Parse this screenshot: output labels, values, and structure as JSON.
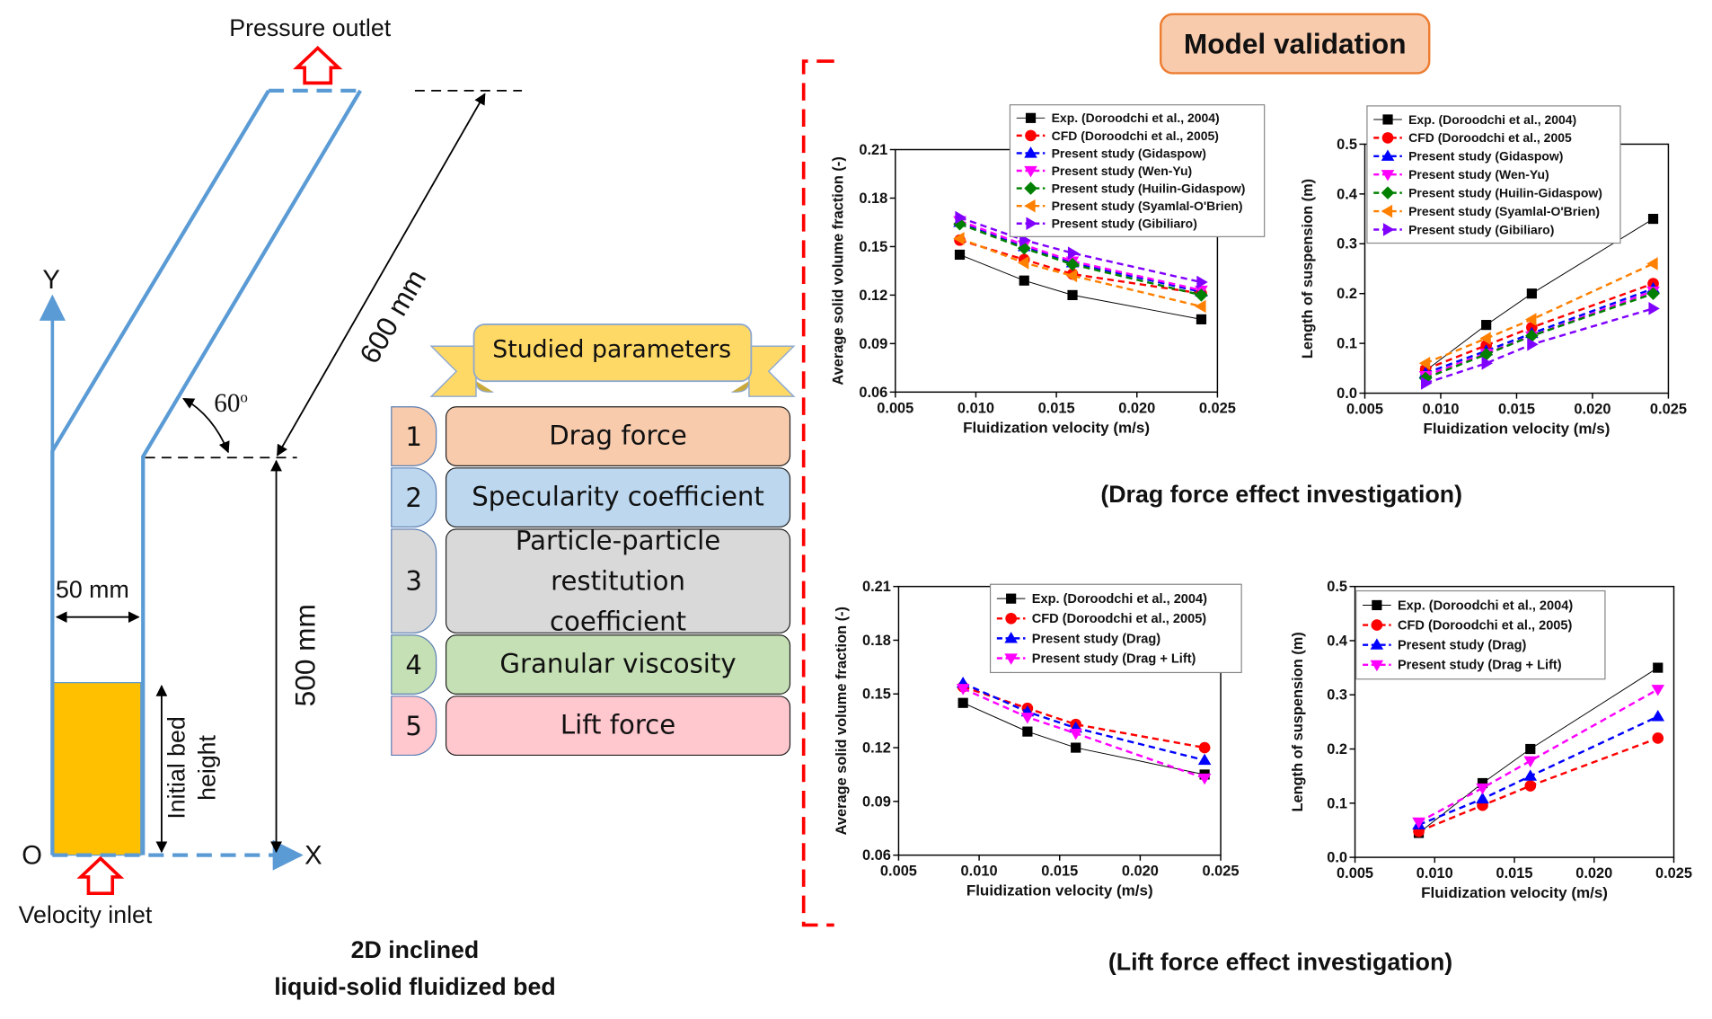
{
  "geometry_labels": {
    "pressure_outlet": "Pressure outlet",
    "velocity_inlet": "Velocity inlet",
    "y_axis": "Y",
    "x_axis": "X",
    "origin": "O",
    "width": "50 mm",
    "initial_bed_height_line1": "Initial bed",
    "initial_bed_height_line2": "height",
    "incline_length": "600 mm",
    "vertical_length": "500 mm",
    "angle": "60",
    "angle_sup": "o",
    "caption_line1": "2D inclined",
    "caption_line2": "liquid-solid fluidized bed"
  },
  "parameters": {
    "banner": "Studied parameters",
    "items": [
      {
        "num": "1",
        "label": "Drag force",
        "color": "#f8cbad"
      },
      {
        "num": "2",
        "label": "Specularity coefficient",
        "color": "#bdd7ee"
      },
      {
        "num": "3",
        "label": "Particle-particle restitution coefficient",
        "color": "#d9d9d9"
      },
      {
        "num": "4",
        "label": "Granular viscosity",
        "color": "#c5e0b4"
      },
      {
        "num": "5",
        "label": "Lift force",
        "color": "#ffc7ce"
      }
    ]
  },
  "validation": {
    "title": "Model validation",
    "drag_caption": "(Drag force effect investigation)",
    "lift_caption": "(Lift force effect investigation)"
  },
  "chart_data": [
    {
      "id": "drag-volume",
      "type": "line",
      "xlabel": "Fluidization velocity (m/s)",
      "ylabel": "Average solid volume fraction (-)",
      "xlim": [
        0.005,
        0.025
      ],
      "ylim": [
        0.06,
        0.21
      ],
      "xticks": [
        0.005,
        0.01,
        0.015,
        0.02,
        0.025
      ],
      "yticks": [
        0.06,
        0.09,
        0.12,
        0.15,
        0.18,
        0.21
      ],
      "xdecimals": 3,
      "ydecimals": 2,
      "legend_position": "top",
      "series": [
        {
          "name": "Exp. (Doroodchi et al., 2004)",
          "color": "#000000",
          "marker": "square",
          "dash": false,
          "x": [
            0.009,
            0.013,
            0.016,
            0.024
          ],
          "y": [
            0.145,
            0.129,
            0.12,
            0.105
          ]
        },
        {
          "name": "CFD (Doroodchi et al., 2005)",
          "color": "#ff0000",
          "marker": "circle",
          "dash": true,
          "x": [
            0.009,
            0.013,
            0.016,
            0.024
          ],
          "y": [
            0.154,
            0.142,
            0.133,
            0.121
          ]
        },
        {
          "name": "Present study (Gidaspow)",
          "color": "#0000ff",
          "marker": "tri-up",
          "dash": true,
          "x": [
            0.009,
            0.013,
            0.016,
            0.024
          ],
          "y": [
            0.165,
            0.15,
            0.14,
            0.122
          ]
        },
        {
          "name": "Present study (Wen-Yu)",
          "color": "#ff00ff",
          "marker": "tri-down",
          "dash": true,
          "x": [
            0.009,
            0.013,
            0.016,
            0.024
          ],
          "y": [
            0.166,
            0.151,
            0.141,
            0.123
          ]
        },
        {
          "name": "Present study (Huilin-Gidaspow)",
          "color": "#008000",
          "marker": "diamond",
          "dash": true,
          "x": [
            0.009,
            0.013,
            0.016,
            0.024
          ],
          "y": [
            0.164,
            0.149,
            0.139,
            0.12
          ]
        },
        {
          "name": "Present study (Syamlal-O'Brien)",
          "color": "#ff8000",
          "marker": "tri-left",
          "dash": true,
          "x": [
            0.009,
            0.013,
            0.016,
            0.024
          ],
          "y": [
            0.155,
            0.14,
            0.132,
            0.113
          ]
        },
        {
          "name": "Present study (Gibiliaro)",
          "color": "#8000ff",
          "marker": "tri-right",
          "dash": true,
          "x": [
            0.009,
            0.013,
            0.016,
            0.024
          ],
          "y": [
            0.168,
            0.154,
            0.146,
            0.128
          ]
        }
      ]
    },
    {
      "id": "drag-length",
      "type": "line",
      "xlabel": "Fluidization velocity (m/s)",
      "ylabel": "Length of suspension (m)",
      "xlim": [
        0.005,
        0.025
      ],
      "ylim": [
        0.0,
        0.5
      ],
      "xticks": [
        0.005,
        0.01,
        0.015,
        0.02,
        0.025
      ],
      "yticks": [
        0.0,
        0.1,
        0.2,
        0.3,
        0.4,
        0.5
      ],
      "xdecimals": 3,
      "ydecimals": 1,
      "legend_position": "top-left",
      "series": [
        {
          "name": "Exp. (Doroodchi et al., 2004)",
          "color": "#000000",
          "marker": "square",
          "dash": false,
          "x": [
            0.009,
            0.013,
            0.016,
            0.024
          ],
          "y": [
            0.045,
            0.137,
            0.2,
            0.35
          ]
        },
        {
          "name": "CFD (Doroodchi et al., 2005",
          "color": "#ff0000",
          "marker": "circle",
          "dash": true,
          "x": [
            0.009,
            0.013,
            0.016,
            0.024
          ],
          "y": [
            0.048,
            0.096,
            0.132,
            0.22
          ]
        },
        {
          "name": "Present study (Gidaspow)",
          "color": "#0000ff",
          "marker": "tri-up",
          "dash": true,
          "x": [
            0.009,
            0.013,
            0.016,
            0.024
          ],
          "y": [
            0.04,
            0.085,
            0.12,
            0.21
          ]
        },
        {
          "name": "Present study (Wen-Yu)",
          "color": "#ff00ff",
          "marker": "tri-down",
          "dash": true,
          "x": [
            0.009,
            0.013,
            0.016,
            0.024
          ],
          "y": [
            0.035,
            0.08,
            0.115,
            0.205
          ]
        },
        {
          "name": "Present study (Huilin-Gidaspow)",
          "color": "#008000",
          "marker": "diamond",
          "dash": true,
          "x": [
            0.009,
            0.013,
            0.016,
            0.024
          ],
          "y": [
            0.03,
            0.078,
            0.115,
            0.2
          ]
        },
        {
          "name": "Present study (Syamlal-O'Brien)",
          "color": "#ff8000",
          "marker": "tri-left",
          "dash": true,
          "x": [
            0.009,
            0.013,
            0.016,
            0.024
          ],
          "y": [
            0.06,
            0.11,
            0.148,
            0.26
          ]
        },
        {
          "name": "Present study (Gibiliaro)",
          "color": "#8000ff",
          "marker": "tri-right",
          "dash": true,
          "x": [
            0.009,
            0.013,
            0.016,
            0.024
          ],
          "y": [
            0.02,
            0.06,
            0.098,
            0.17
          ]
        }
      ]
    },
    {
      "id": "lift-volume",
      "type": "line",
      "xlabel": "Fluidization velocity (m/s)",
      "ylabel": "Average solid volume fraction (-)",
      "xlim": [
        0.005,
        0.025
      ],
      "ylim": [
        0.06,
        0.21
      ],
      "xticks": [
        0.005,
        0.01,
        0.015,
        0.02,
        0.025
      ],
      "yticks": [
        0.06,
        0.09,
        0.12,
        0.15,
        0.18,
        0.21
      ],
      "xdecimals": 3,
      "ydecimals": 2,
      "legend_position": "top-right",
      "series": [
        {
          "name": "Exp. (Doroodchi et al., 2004)",
          "color": "#000000",
          "marker": "square",
          "dash": false,
          "x": [
            0.009,
            0.013,
            0.016,
            0.024
          ],
          "y": [
            0.145,
            0.129,
            0.12,
            0.105
          ]
        },
        {
          "name": "CFD (Doroodchi et al., 2005)",
          "color": "#ff0000",
          "marker": "circle",
          "dash": true,
          "x": [
            0.009,
            0.013,
            0.016,
            0.024
          ],
          "y": [
            0.154,
            0.142,
            0.133,
            0.12
          ]
        },
        {
          "name": "Present study (Drag)",
          "color": "#0000ff",
          "marker": "tri-up",
          "dash": true,
          "x": [
            0.009,
            0.013,
            0.016,
            0.024
          ],
          "y": [
            0.156,
            0.14,
            0.131,
            0.113
          ]
        },
        {
          "name": "Present study (Drag + Lift)",
          "color": "#ff00ff",
          "marker": "tri-down",
          "dash": true,
          "x": [
            0.009,
            0.013,
            0.016,
            0.024
          ],
          "y": [
            0.153,
            0.137,
            0.128,
            0.103
          ]
        }
      ]
    },
    {
      "id": "lift-length",
      "type": "line",
      "xlabel": "Fluidization velocity (m/s)",
      "ylabel": "Length of suspension (m)",
      "xlim": [
        0.005,
        0.025
      ],
      "ylim": [
        0.0,
        0.5
      ],
      "xticks": [
        0.005,
        0.01,
        0.015,
        0.02,
        0.025
      ],
      "yticks": [
        0.0,
        0.1,
        0.2,
        0.3,
        0.4,
        0.5
      ],
      "xdecimals": 3,
      "ydecimals": 1,
      "legend_position": "top-left",
      "series": [
        {
          "name": "Exp. (Doroodchi et al., 2004)",
          "color": "#000000",
          "marker": "square",
          "dash": false,
          "x": [
            0.009,
            0.013,
            0.016,
            0.024
          ],
          "y": [
            0.045,
            0.137,
            0.2,
            0.35
          ]
        },
        {
          "name": "CFD (Doroodchi et al., 2005)",
          "color": "#ff0000",
          "marker": "circle",
          "dash": true,
          "x": [
            0.009,
            0.013,
            0.016,
            0.024
          ],
          "y": [
            0.048,
            0.096,
            0.132,
            0.22
          ]
        },
        {
          "name": "Present study (Drag)",
          "color": "#0000ff",
          "marker": "tri-up",
          "dash": true,
          "x": [
            0.009,
            0.013,
            0.016,
            0.024
          ],
          "y": [
            0.06,
            0.108,
            0.15,
            0.26
          ]
        },
        {
          "name": "Present study (Drag + Lift)",
          "color": "#ff00ff",
          "marker": "tri-down",
          "dash": true,
          "x": [
            0.009,
            0.013,
            0.016,
            0.024
          ],
          "y": [
            0.065,
            0.128,
            0.178,
            0.31
          ]
        }
      ]
    }
  ]
}
